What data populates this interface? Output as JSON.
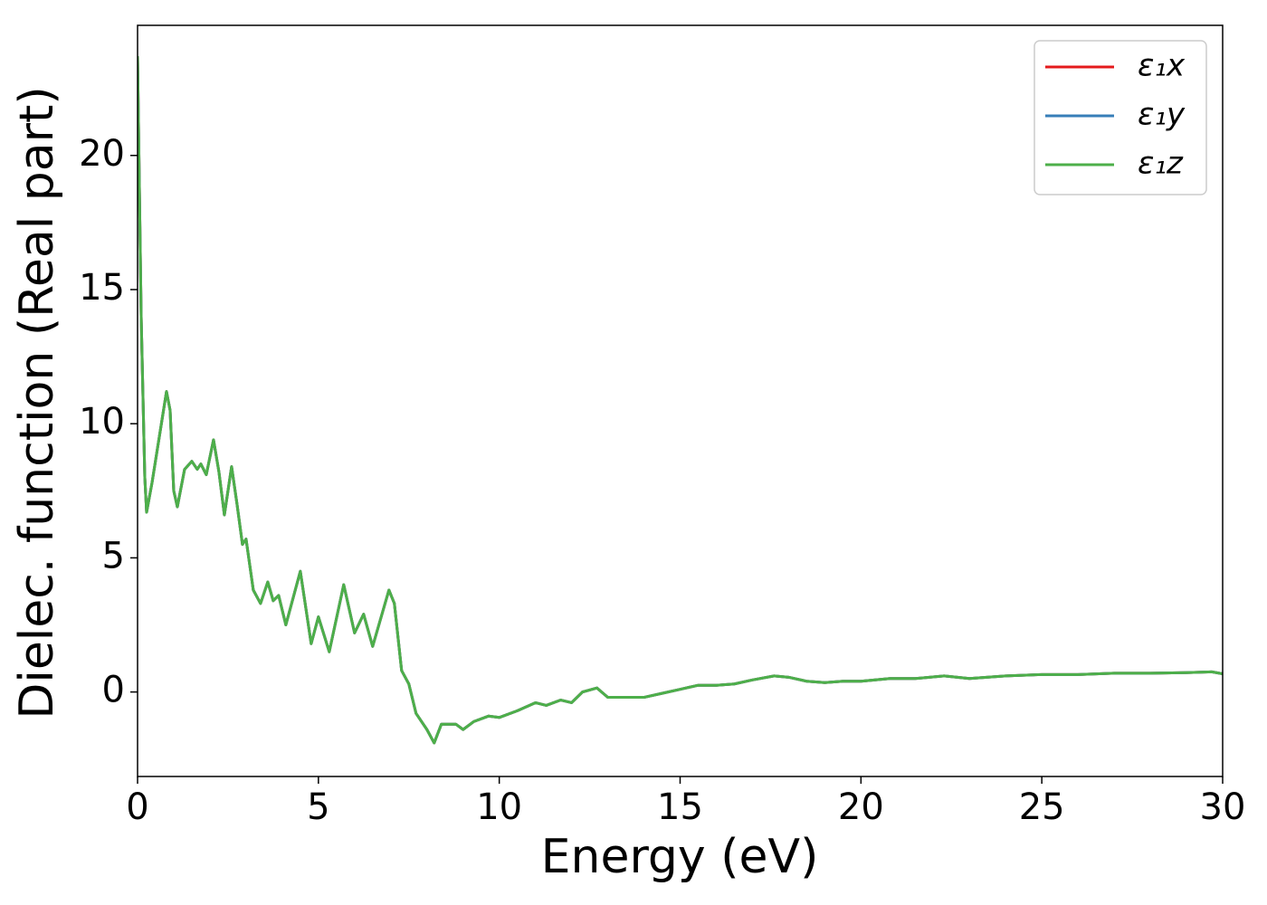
{
  "chart_data": {
    "type": "line",
    "xlabel": "Energy (eV)",
    "ylabel": "Dielec. function (Real part)",
    "xlim": [
      0,
      30
    ],
    "ylim": [
      -3.15,
      24.85
    ],
    "xticks": [
      0,
      5,
      10,
      15,
      20,
      25,
      30
    ],
    "yticks": [
      0,
      5,
      10,
      15,
      20
    ],
    "legend": "upper right",
    "grid": false,
    "x": [
      0.0,
      0.1,
      0.2,
      0.25,
      0.4,
      0.6,
      0.8,
      0.9,
      1.0,
      1.1,
      1.3,
      1.5,
      1.65,
      1.75,
      1.9,
      2.1,
      2.25,
      2.4,
      2.6,
      2.75,
      2.9,
      3.0,
      3.2,
      3.4,
      3.6,
      3.75,
      3.9,
      4.1,
      4.5,
      4.8,
      5.0,
      5.3,
      5.7,
      6.0,
      6.25,
      6.5,
      6.95,
      7.1,
      7.3,
      7.5,
      7.7,
      8.0,
      8.2,
      8.4,
      8.6,
      8.8,
      9.0,
      9.3,
      9.7,
      10.0,
      10.5,
      11.0,
      11.3,
      11.7,
      12.0,
      12.3,
      12.7,
      13.0,
      13.5,
      14.0,
      14.5,
      15.0,
      15.5,
      16.0,
      16.5,
      17.0,
      17.6,
      18.0,
      18.5,
      19.0,
      19.5,
      20.0,
      20.8,
      21.5,
      22.3,
      23.0,
      24.0,
      25.0,
      26.0,
      27.0,
      28.0,
      29.0,
      29.7,
      30.0
    ],
    "series": [
      {
        "name": "ε₁x",
        "color": "#e41a1c",
        "values": [
          23.7,
          14,
          8,
          6.7,
          7.8,
          9.5,
          11.2,
          10.5,
          7.5,
          6.9,
          8.3,
          8.6,
          8.3,
          8.5,
          8.1,
          9.4,
          8.2,
          6.6,
          8.4,
          7.0,
          5.5,
          5.7,
          3.8,
          3.3,
          4.1,
          3.4,
          3.6,
          2.5,
          4.5,
          1.8,
          2.8,
          1.5,
          4.0,
          2.2,
          2.9,
          1.7,
          3.8,
          3.3,
          0.8,
          0.3,
          -0.8,
          -1.4,
          -1.9,
          -1.2,
          -1.2,
          -1.2,
          -1.4,
          -1.1,
          -0.9,
          -0.95,
          -0.7,
          -0.4,
          -0.5,
          -0.3,
          -0.4,
          0.0,
          0.15,
          -0.2,
          -0.2,
          -0.2,
          -0.05,
          0.1,
          0.25,
          0.25,
          0.3,
          0.45,
          0.6,
          0.55,
          0.4,
          0.35,
          0.4,
          0.4,
          0.5,
          0.5,
          0.6,
          0.5,
          0.6,
          0.65,
          0.65,
          0.7,
          0.7,
          0.72,
          0.75,
          0.68
        ]
      },
      {
        "name": "ε₁y",
        "color": "#377eb8",
        "values": [
          23.7,
          14,
          8,
          6.7,
          7.8,
          9.5,
          11.2,
          10.5,
          7.5,
          6.9,
          8.3,
          8.6,
          8.3,
          8.5,
          8.1,
          9.4,
          8.2,
          6.6,
          8.4,
          7.0,
          5.5,
          5.7,
          3.8,
          3.3,
          4.1,
          3.4,
          3.6,
          2.5,
          4.5,
          1.8,
          2.8,
          1.5,
          4.0,
          2.2,
          2.9,
          1.7,
          3.8,
          3.3,
          0.8,
          0.3,
          -0.8,
          -1.4,
          -1.9,
          -1.2,
          -1.2,
          -1.2,
          -1.4,
          -1.1,
          -0.9,
          -0.95,
          -0.7,
          -0.4,
          -0.5,
          -0.3,
          -0.4,
          0.0,
          0.15,
          -0.2,
          -0.2,
          -0.2,
          -0.05,
          0.1,
          0.25,
          0.25,
          0.3,
          0.45,
          0.6,
          0.55,
          0.4,
          0.35,
          0.4,
          0.4,
          0.5,
          0.5,
          0.6,
          0.5,
          0.6,
          0.65,
          0.65,
          0.7,
          0.7,
          0.72,
          0.75,
          0.68
        ]
      },
      {
        "name": "ε₁z",
        "color": "#4daf4a",
        "values": [
          23.7,
          14,
          8,
          6.7,
          7.8,
          9.5,
          11.2,
          10.5,
          7.5,
          6.9,
          8.3,
          8.6,
          8.3,
          8.5,
          8.1,
          9.4,
          8.2,
          6.6,
          8.4,
          7.0,
          5.5,
          5.7,
          3.8,
          3.3,
          4.1,
          3.4,
          3.6,
          2.5,
          4.5,
          1.8,
          2.8,
          1.5,
          4.0,
          2.2,
          2.9,
          1.7,
          3.8,
          3.3,
          0.8,
          0.3,
          -0.8,
          -1.4,
          -1.9,
          -1.2,
          -1.2,
          -1.2,
          -1.4,
          -1.1,
          -0.9,
          -0.95,
          -0.7,
          -0.4,
          -0.5,
          -0.3,
          -0.4,
          0.0,
          0.15,
          -0.2,
          -0.2,
          -0.2,
          -0.05,
          0.1,
          0.25,
          0.25,
          0.3,
          0.45,
          0.6,
          0.55,
          0.4,
          0.35,
          0.4,
          0.4,
          0.5,
          0.5,
          0.6,
          0.5,
          0.6,
          0.65,
          0.65,
          0.7,
          0.7,
          0.72,
          0.75,
          0.68
        ]
      }
    ]
  }
}
